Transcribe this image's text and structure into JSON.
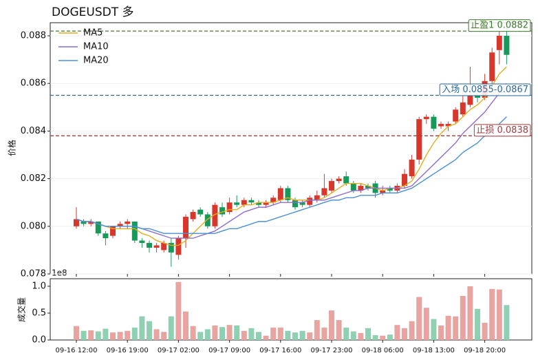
{
  "chart_data": {
    "type": "candlestick",
    "title": "DOGEUSDT  多",
    "y_label": "价格",
    "volume_label": "成交量",
    "volume_offset_label": "1e8",
    "categories": [
      "09-16 12:00",
      null,
      null,
      null,
      null,
      null,
      null,
      "09-16 19:00",
      null,
      null,
      null,
      null,
      null,
      null,
      "09-17 02:00",
      null,
      null,
      null,
      null,
      null,
      null,
      "09-17 09:00",
      null,
      null,
      null,
      null,
      null,
      null,
      "09-17 16:00",
      null,
      null,
      null,
      null,
      null,
      null,
      "09-17 23:00",
      null,
      null,
      null,
      null,
      null,
      null,
      "09-18 06:00",
      null,
      null,
      null,
      null,
      null,
      null,
      "09-18 13:00",
      null,
      null,
      null,
      null,
      null,
      null,
      "09-18 20:00",
      null,
      null,
      null
    ],
    "open": [
      0.08,
      0.0802,
      0.0801,
      0.0802,
      0.0797,
      0.0796,
      0.08,
      0.0801,
      0.0802,
      0.0794,
      0.0793,
      0.0791,
      0.079,
      0.0793,
      0.0788,
      0.0795,
      0.0803,
      0.0807,
      0.0805,
      0.08,
      0.0808,
      0.0806,
      0.081,
      0.0809,
      0.0811,
      0.081,
      0.0809,
      0.081,
      0.0811,
      0.0816,
      0.0811,
      0.081,
      0.0809,
      0.0811,
      0.0813,
      0.0815,
      0.0819,
      0.0821,
      0.0818,
      0.0815,
      0.0817,
      0.0818,
      0.0814,
      0.0816,
      0.0815,
      0.0817,
      0.0821,
      0.0828,
      0.0845,
      0.0846,
      0.0842,
      0.0842,
      0.0844,
      0.0847,
      0.0851,
      0.0855,
      0.0854,
      0.0861,
      0.0874,
      0.088
    ],
    "high": [
      0.0808,
      0.0803,
      0.0803,
      0.0802,
      0.0798,
      0.08,
      0.0802,
      0.0803,
      0.0802,
      0.0795,
      0.0794,
      0.0793,
      0.0794,
      0.0795,
      0.0796,
      0.0805,
      0.0807,
      0.0808,
      0.0806,
      0.081,
      0.081,
      0.0812,
      0.0813,
      0.0812,
      0.0812,
      0.0811,
      0.0811,
      0.0813,
      0.0817,
      0.0817,
      0.0812,
      0.0811,
      0.0813,
      0.0815,
      0.0822,
      0.082,
      0.0821,
      0.0823,
      0.0819,
      0.0818,
      0.0818,
      0.0819,
      0.0817,
      0.0817,
      0.0818,
      0.0824,
      0.083,
      0.0846,
      0.0847,
      0.0847,
      0.0844,
      0.0844,
      0.085,
      0.0855,
      0.0867,
      0.0857,
      0.0864,
      0.0875,
      0.0882,
      0.0884
    ],
    "low": [
      0.0799,
      0.08,
      0.08,
      0.0796,
      0.0792,
      0.0795,
      0.0799,
      0.0799,
      0.0793,
      0.0791,
      0.0789,
      0.0789,
      0.0789,
      0.0783,
      0.0786,
      0.0791,
      0.0802,
      0.0804,
      0.0799,
      0.0799,
      0.0804,
      0.0805,
      0.0808,
      0.0808,
      0.0809,
      0.0808,
      0.0808,
      0.0809,
      0.081,
      0.081,
      0.0807,
      0.0808,
      0.0808,
      0.081,
      0.0812,
      0.0814,
      0.0818,
      0.0817,
      0.0814,
      0.0814,
      0.0815,
      0.0812,
      0.0813,
      0.0814,
      0.0814,
      0.0816,
      0.082,
      0.0826,
      0.0843,
      0.084,
      0.0841,
      0.084,
      0.0843,
      0.0846,
      0.085,
      0.0852,
      0.0853,
      0.0858,
      0.0868,
      0.0868
    ],
    "close": [
      0.0803,
      0.0801,
      0.0802,
      0.0797,
      0.0795,
      0.08,
      0.0801,
      0.0802,
      0.0794,
      0.0793,
      0.0791,
      0.0792,
      0.0793,
      0.0789,
      0.0795,
      0.0804,
      0.0806,
      0.0805,
      0.08,
      0.0809,
      0.0805,
      0.081,
      0.0809,
      0.0811,
      0.081,
      0.0809,
      0.081,
      0.0812,
      0.0816,
      0.0811,
      0.0808,
      0.0809,
      0.0812,
      0.0813,
      0.0816,
      0.0819,
      0.082,
      0.0818,
      0.0815,
      0.0817,
      0.0816,
      0.0814,
      0.0815,
      0.0815,
      0.0817,
      0.0822,
      0.0828,
      0.0845,
      0.0846,
      0.0841,
      0.0843,
      0.0843,
      0.0849,
      0.0852,
      0.0855,
      0.0854,
      0.0861,
      0.0873,
      0.088,
      0.0872
    ],
    "volume": [
      0.26,
      0.17,
      0.18,
      0.16,
      0.21,
      0.14,
      0.15,
      0.17,
      0.23,
      0.44,
      0.35,
      0.2,
      0.15,
      0.44,
      1.08,
      0.53,
      0.26,
      0.15,
      0.2,
      0.27,
      0.24,
      0.28,
      0.27,
      0.17,
      0.22,
      0.15,
      0.08,
      0.23,
      0.23,
      0.17,
      0.14,
      0.17,
      0.14,
      0.37,
      0.23,
      0.55,
      0.37,
      0.23,
      0.16,
      0.13,
      0.22,
      0.09,
      0.08,
      0.1,
      0.28,
      0.22,
      0.35,
      0.8,
      0.6,
      0.39,
      0.27,
      0.45,
      0.44,
      0.82,
      1.0,
      0.58,
      0.32,
      0.95,
      0.94,
      0.65
    ],
    "series": [
      {
        "name": "MA5",
        "color": "#e3ad1c",
        "values": [
          0.0803,
          0.0802,
          0.0802,
          0.0801,
          0.08,
          0.0799,
          0.0799,
          0.0799,
          0.0799,
          0.0797,
          0.0796,
          0.0794,
          0.0793,
          0.0792,
          0.0792,
          0.0794,
          0.0797,
          0.08,
          0.0803,
          0.0805,
          0.0806,
          0.0807,
          0.0807,
          0.0809,
          0.0809,
          0.081,
          0.081,
          0.081,
          0.0811,
          0.0812,
          0.0811,
          0.0811,
          0.0811,
          0.0811,
          0.0812,
          0.0814,
          0.0816,
          0.0818,
          0.0818,
          0.0818,
          0.0817,
          0.0816,
          0.0815,
          0.0816,
          0.0816,
          0.0817,
          0.0819,
          0.0824,
          0.083,
          0.0835,
          0.0839,
          0.0842,
          0.0843,
          0.0846,
          0.0849,
          0.0851,
          0.0854,
          0.0859,
          0.0864,
          0.0867
        ]
      },
      {
        "name": "MA10",
        "color": "#8c6bd0",
        "values": [
          0.0803,
          0.0802,
          0.0802,
          0.0801,
          0.08,
          0.08,
          0.08,
          0.08,
          0.08,
          0.0799,
          0.0798,
          0.0797,
          0.0796,
          0.0795,
          0.0795,
          0.0795,
          0.0795,
          0.0796,
          0.0797,
          0.0798,
          0.08,
          0.0802,
          0.0804,
          0.0806,
          0.0807,
          0.0808,
          0.0808,
          0.0809,
          0.081,
          0.081,
          0.081,
          0.081,
          0.0811,
          0.0811,
          0.0811,
          0.0812,
          0.0813,
          0.0814,
          0.0815,
          0.0815,
          0.0816,
          0.0816,
          0.0816,
          0.0816,
          0.0816,
          0.0816,
          0.0817,
          0.082,
          0.0823,
          0.0826,
          0.0829,
          0.0832,
          0.0835,
          0.0839,
          0.0842,
          0.0845,
          0.0848,
          0.0852,
          0.0856,
          0.086
        ]
      },
      {
        "name": "MA20",
        "color": "#4a8fd6",
        "values": [
          0.0803,
          0.0802,
          0.0802,
          0.0801,
          0.08,
          0.08,
          0.08,
          0.08,
          0.08,
          0.0799,
          0.0799,
          0.0798,
          0.0797,
          0.0797,
          0.0797,
          0.0797,
          0.0797,
          0.0797,
          0.0797,
          0.0797,
          0.0798,
          0.0799,
          0.0799,
          0.08,
          0.0801,
          0.0802,
          0.0802,
          0.0803,
          0.0804,
          0.0805,
          0.0806,
          0.0807,
          0.0808,
          0.0809,
          0.081,
          0.0811,
          0.0811,
          0.0812,
          0.0812,
          0.0813,
          0.0813,
          0.0813,
          0.0814,
          0.0814,
          0.0814,
          0.0815,
          0.0816,
          0.0818,
          0.082,
          0.0822,
          0.0824,
          0.0826,
          0.0828,
          0.0831,
          0.0833,
          0.0835,
          0.0838,
          0.084,
          0.0843,
          0.0846
        ]
      }
    ],
    "levels": [
      {
        "value": 0.0882,
        "label": "止盈1 0.0882",
        "color": "#3e7a2a"
      },
      {
        "value": 0.0855,
        "label": "入场 0.0855-0.0867",
        "color": "#2a6a9e"
      },
      {
        "value": 0.0838,
        "label": "止损 0.0838",
        "color": "#a33a3a"
      }
    ],
    "up_color": "#d8382c",
    "down_color": "#17995a",
    "volume_up_color": "#e8a4a0",
    "volume_down_color": "#90d0b2",
    "ylim": [
      0.078,
      0.08855
    ],
    "yticks": [
      0.078,
      {
        "value": 0.08,
        "label": "0.080"
      },
      0.082,
      0.084,
      0.086,
      0.088
    ],
    "volume_ylim": [
      0,
      1.14
    ],
    "volume_yticks": [
      {
        "value": 0,
        "label": "0.0"
      },
      {
        "value": 0.5,
        "label": "0.5"
      },
      {
        "value": 1,
        "label": "1.0"
      }
    ],
    "grid": true,
    "legend": "upper left"
  }
}
